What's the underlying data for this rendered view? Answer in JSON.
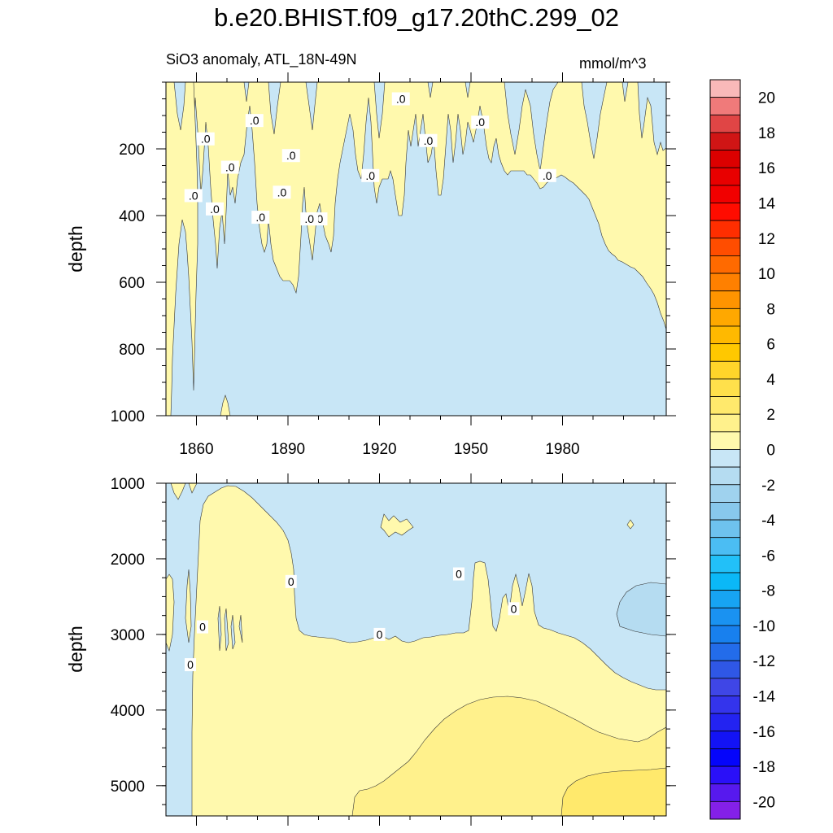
{
  "chart_data": {
    "type": "contour",
    "title": "b.e20.BHIST.f09_g17.20thC.299_02",
    "subtitle": "SiO3 anomaly, ATL_18N-49N",
    "units": "mmol/m^3",
    "colorbar": {
      "min": -21,
      "max": 21,
      "step": 1,
      "tick_labels": [
        "20",
        "18",
        "16",
        "14",
        "12",
        "10",
        "8",
        "6",
        "4",
        "2",
        "0",
        "-2",
        "-4",
        "-6",
        "-8",
        "-10",
        "-12",
        "-14",
        "-16",
        "-18",
        "-20"
      ],
      "colors_top_to_bottom": [
        "#f9b9b9",
        "#f07a7a",
        "#e04545",
        "#d01515",
        "#dc0000",
        "#e80000",
        "#f10000",
        "#ff0c00",
        "#ff2e00",
        "#ff4d00",
        "#ff6a00",
        "#ff8000",
        "#ff9400",
        "#ffa800",
        "#ffb900",
        "#ffc800",
        "#ffd52a",
        "#ffe04b",
        "#ffe96c",
        "#fff18c",
        "#fff9ad",
        "#c8e6f6",
        "#b5dcf1",
        "#9fd2ee",
        "#88c8ec",
        "#6ec2ee",
        "#4bbdf3",
        "#22c0f8",
        "#0bb8f7",
        "#17a4f3",
        "#1a92f1",
        "#1880ee",
        "#236cea",
        "#2f57e6",
        "#3f46e6",
        "#3434ec",
        "#2323f1",
        "#1313f5",
        "#0505fb",
        "#2a10f8",
        "#5719ee",
        "#8420e8"
      ]
    },
    "panels": [
      {
        "id": "upper",
        "ylabel": "depth",
        "y_range": [
          0,
          1000
        ],
        "y_ticks": [
          200,
          400,
          600,
          800,
          1000
        ],
        "x_range": [
          1850,
          2014
        ],
        "x_ticks": [
          1860,
          1890,
          1920,
          1950,
          1980
        ],
        "contour_label": ".0",
        "contour_label_positions": [
          [
            1859,
            340
          ],
          [
            1863,
            170
          ],
          [
            1866,
            380
          ],
          [
            1871,
            255
          ],
          [
            1879,
            115
          ],
          [
            1881,
            405
          ],
          [
            1888,
            330
          ],
          [
            1891,
            220
          ],
          [
            1900,
            410
          ],
          [
            1897,
            410
          ],
          [
            1917,
            280
          ],
          [
            1927,
            50
          ],
          [
            1936,
            175
          ],
          [
            1953,
            120
          ],
          [
            1975,
            280
          ]
        ]
      },
      {
        "id": "lower",
        "ylabel": "depth",
        "y_range": [
          1000,
          5400
        ],
        "y_ticks": [
          1000,
          2000,
          3000,
          4000,
          5000
        ],
        "x_range": [
          1850,
          2014
        ],
        "x_ticks": [
          1860,
          1890,
          1920,
          1950,
          1980
        ],
        "contour_label": "0",
        "contour_label_positions": [
          [
            1858,
            3400
          ],
          [
            1862,
            2900
          ],
          [
            1891,
            2300
          ],
          [
            1920,
            3000
          ],
          [
            1946,
            2200
          ],
          [
            1964,
            2660
          ]
        ]
      }
    ]
  }
}
